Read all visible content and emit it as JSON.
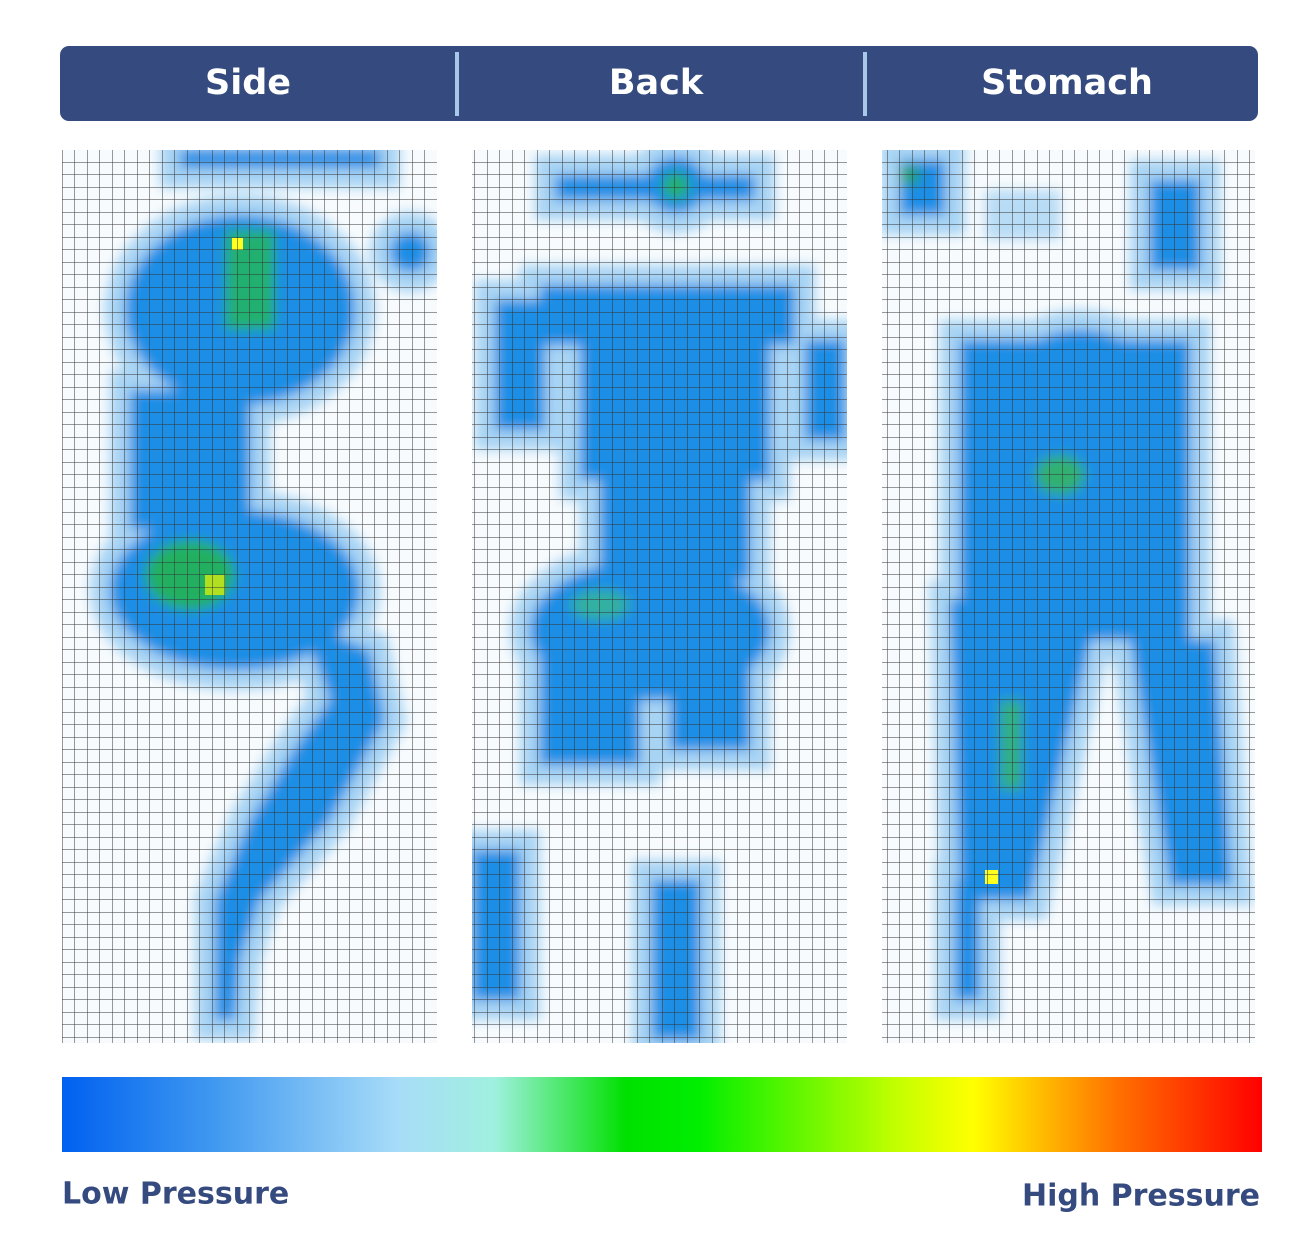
{
  "header": {
    "tabs": [
      "Side",
      "Back",
      "Stomach"
    ]
  },
  "legend": {
    "low_label": "Low Pressure",
    "high_label": "High Pressure"
  }
}
